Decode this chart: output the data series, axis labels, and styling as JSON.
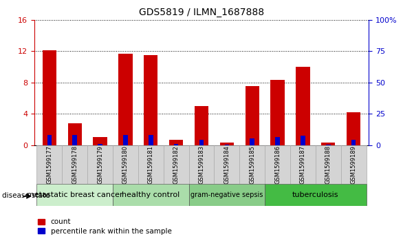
{
  "title": "GDS5819 / ILMN_1687888",
  "samples": [
    "GSM1599177",
    "GSM1599178",
    "GSM1599179",
    "GSM1599180",
    "GSM1599181",
    "GSM1599182",
    "GSM1599183",
    "GSM1599184",
    "GSM1599185",
    "GSM1599186",
    "GSM1599187",
    "GSM1599188",
    "GSM1599189"
  ],
  "count_values": [
    12.1,
    2.8,
    1.0,
    11.7,
    11.5,
    0.7,
    5.0,
    0.3,
    7.5,
    8.3,
    10.0,
    0.3,
    4.2
  ],
  "percentile_values": [
    8.0,
    8.1,
    0.8,
    7.9,
    7.9,
    1.0,
    4.3,
    0.2,
    5.5,
    6.5,
    7.5,
    0.2,
    4.1
  ],
  "count_color": "#cc0000",
  "percentile_color": "#0000cc",
  "ylim_left": [
    0,
    16
  ],
  "ylim_right": [
    0,
    100
  ],
  "yticks_left": [
    0,
    4,
    8,
    12,
    16
  ],
  "yticks_right": [
    0,
    25,
    50,
    75,
    100
  ],
  "ytick_right_labels": [
    "0",
    "25",
    "50",
    "75",
    "100%"
  ],
  "disease_groups": [
    {
      "label": "metastatic breast cancer",
      "start": 0,
      "end": 3,
      "color": "#cceecc"
    },
    {
      "label": "healthy control",
      "start": 3,
      "end": 6,
      "color": "#aaddaa"
    },
    {
      "label": "gram-negative sepsis",
      "start": 6,
      "end": 9,
      "color": "#88cc88"
    },
    {
      "label": "tuberculosis",
      "start": 9,
      "end": 13,
      "color": "#44bb44"
    }
  ],
  "count_color_legend": "#cc0000",
  "percentile_color_legend": "#0000cc",
  "left_axis_color": "#cc0000",
  "right_axis_color": "#0000cc",
  "grid_color": "#000000",
  "sample_box_color": "#d4d4d4",
  "sample_box_edge": "#aaaaaa"
}
